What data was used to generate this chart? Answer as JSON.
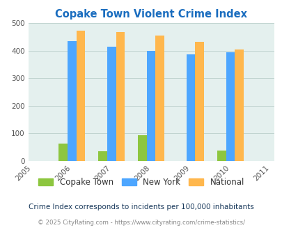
{
  "title": "Copake Town Violent Crime Index",
  "all_years": [
    2005,
    2006,
    2007,
    2008,
    2009,
    2010,
    2011
  ],
  "data_years": [
    2006,
    2007,
    2008,
    2009,
    2010
  ],
  "copake": [
    62,
    35,
    93,
    0,
    38
  ],
  "newyork": [
    435,
    415,
    400,
    387,
    394
  ],
  "national": [
    473,
    467,
    455,
    432,
    405
  ],
  "copake_color": "#8dc63f",
  "newyork_color": "#4da6ff",
  "national_color": "#ffb74d",
  "bg_color": "#e4f0ee",
  "title_color": "#1a6dbf",
  "ylim": [
    0,
    500
  ],
  "yticks": [
    0,
    100,
    200,
    300,
    400,
    500
  ],
  "legend_labels": [
    "Copake Town",
    "New York",
    "National"
  ],
  "footnote1": "Crime Index corresponds to incidents per 100,000 inhabitants",
  "footnote2": "© 2025 CityRating.com - https://www.cityrating.com/crime-statistics/",
  "bar_width": 0.22,
  "grid_color": "#c0d4d0",
  "footnote1_color": "#1a3a5c",
  "footnote2_color": "#888888"
}
